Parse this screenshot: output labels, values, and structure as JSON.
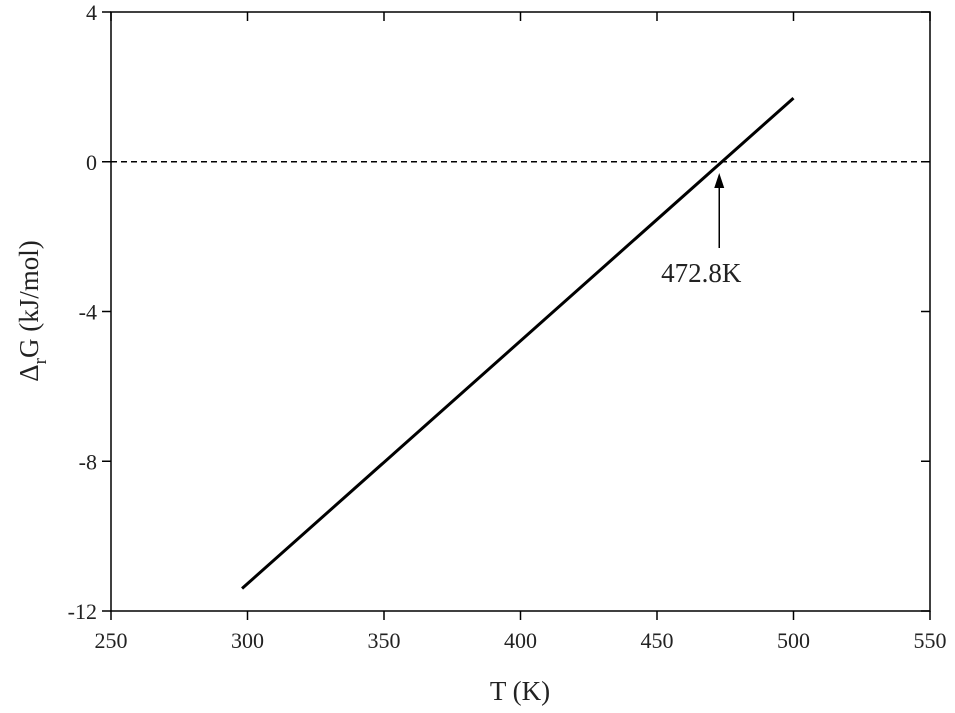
{
  "chart_data": {
    "type": "line",
    "x_label": "T (K)",
    "y_label": [
      "Δ",
      "r",
      "G (kJ/mol)"
    ],
    "x": [
      298,
      500
    ],
    "series": [
      {
        "color": "#000000",
        "values": [
          -11.4,
          1.7
        ]
      }
    ],
    "xlim": [
      250,
      550
    ],
    "xticks": [
      250,
      300,
      350,
      400,
      450,
      500,
      550
    ],
    "ylim": [
      -12,
      4
    ],
    "yticks": [
      -12,
      -8,
      -4,
      0,
      4
    ],
    "reference_line": 0,
    "annotation": {
      "x": 472.8,
      "label": "472.8K"
    }
  }
}
